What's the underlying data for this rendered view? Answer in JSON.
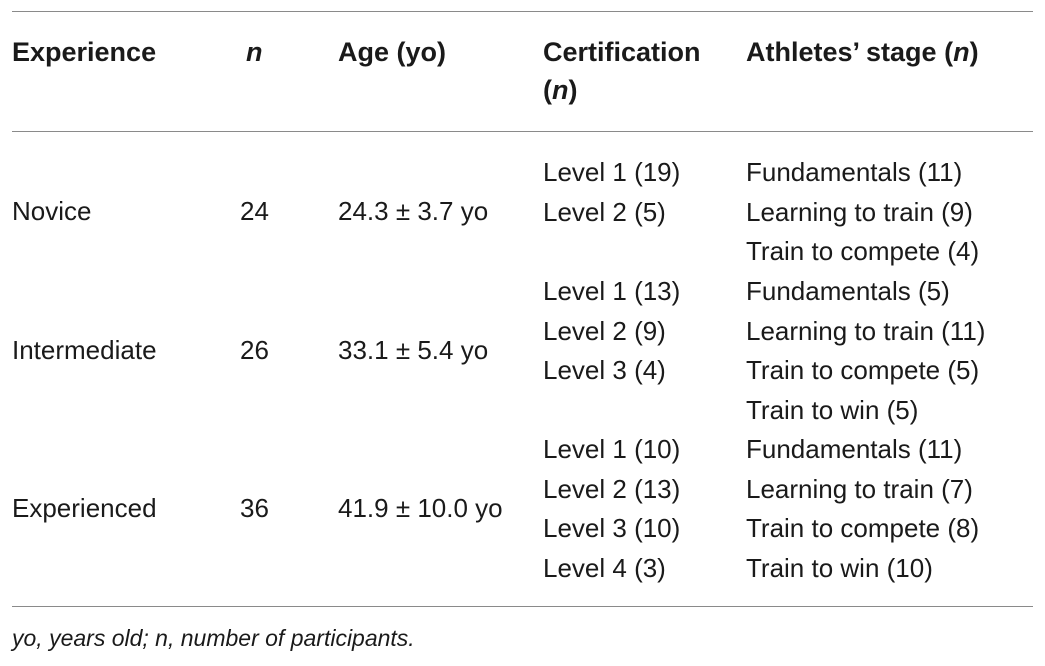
{
  "table": {
    "headers": {
      "experience": "Experience",
      "n": "n",
      "age": "Age (yo)",
      "certification_text": "Certification",
      "certification_n": "n",
      "stage_text": "Athletes’ stage",
      "stage_n": "n"
    },
    "rows": [
      {
        "experience": "Novice",
        "n": "24",
        "age": "24.3 ± 3.7 yo",
        "certification": [
          "Level 1 (19)",
          "Level 2 (5)"
        ],
        "stages": [
          "Fundamentals (11)",
          "Learning to train (9)",
          "Train to compete (4)"
        ]
      },
      {
        "experience": "Intermediate",
        "n": "26",
        "age": "33.1 ± 5.4 yo",
        "certification": [
          "Level 1 (13)",
          "Level 2 (9)",
          "Level 3 (4)"
        ],
        "stages": [
          "Fundamentals (5)",
          "Learning to train (11)",
          "Train to compete (5)",
          "Train to win (5)"
        ]
      },
      {
        "experience": "Experienced",
        "n": "36",
        "age": "41.9 ± 10.0 yo",
        "certification": [
          "Level 1 (10)",
          "Level 2 (13)",
          "Level 3 (10)",
          "Level 4 (3)"
        ],
        "stages": [
          "Fundamentals (11)",
          "Learning to train (7)",
          "Train to compete (8)",
          "Train to win (10)"
        ]
      }
    ]
  },
  "footnote": "yo, years old; n, number of participants."
}
